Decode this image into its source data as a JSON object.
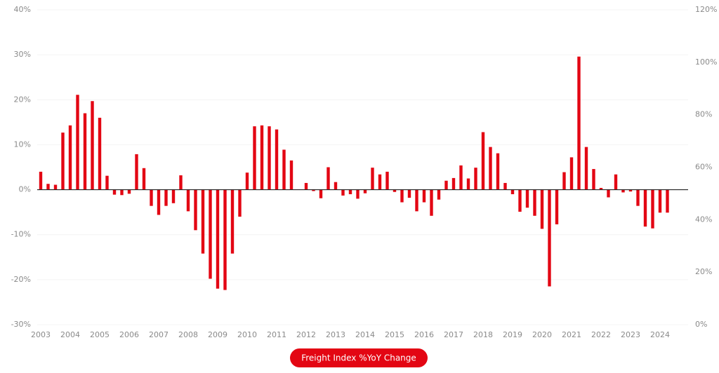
{
  "chart_data": {
    "type": "bar",
    "categories": [
      "2003",
      null,
      null,
      null,
      "2004",
      null,
      null,
      null,
      "2005",
      null,
      null,
      null,
      "2006",
      null,
      null,
      null,
      "2007",
      null,
      null,
      null,
      "2008",
      null,
      null,
      null,
      "2009",
      null,
      null,
      null,
      "2010",
      null,
      null,
      null,
      "2011",
      null,
      null,
      null,
      "2012",
      null,
      null,
      null,
      "2013",
      null,
      null,
      null,
      "2014",
      null,
      null,
      null,
      "2015",
      null,
      null,
      null,
      "2016",
      null,
      null,
      null,
      "2017",
      null,
      null,
      null,
      "2018",
      null,
      null,
      null,
      "2019",
      null,
      null,
      null,
      "2020",
      null,
      null,
      null,
      "2021",
      null,
      null,
      null,
      "2022",
      null,
      null,
      null,
      "2023",
      null,
      null,
      null,
      "2024",
      null
    ],
    "series": [
      {
        "name": "Freight Index %YoY Change",
        "color": "#e30613",
        "values": [
          4,
          1.3,
          1.1,
          12.7,
          14.3,
          21.1,
          17,
          19.7,
          16,
          3.1,
          -1.1,
          -1.2,
          -0.9,
          7.9,
          4.8,
          -3.6,
          -5.6,
          -3.6,
          -3.0,
          3.2,
          -4.8,
          -9,
          -14.2,
          -19.8,
          -22,
          -22.3,
          -14.2,
          -6,
          3.8,
          14.1,
          14.3,
          14.1,
          13.4,
          8.9,
          6.5,
          0,
          1.5,
          -0.3,
          -1.9,
          5.0,
          1.7,
          -1.3,
          -1,
          -2,
          -0.8,
          4.9,
          3.4,
          4.0,
          -0.5,
          -2.8,
          -1.8,
          -4.8,
          -2.8,
          -5.8,
          -2.2,
          2.0,
          2.6,
          5.4,
          2.5,
          4.9,
          12.8,
          9.5,
          8.1,
          1.5,
          -1,
          -4.9,
          -4,
          -5.8,
          -8.7,
          -21.5,
          -7.7,
          3.9,
          7.2,
          29.6,
          9.5,
          4.6,
          0.4,
          -1.7,
          3.4,
          -0.6,
          -0.4,
          -3.6,
          -8.2,
          -8.6,
          -5.1,
          -5.1
        ]
      }
    ],
    "ylim": [
      -30,
      40
    ],
    "yticks": [
      {
        "value": -30,
        "label": "-30%"
      },
      {
        "value": -20,
        "label": "-20%"
      },
      {
        "value": -10,
        "label": "-10%"
      },
      {
        "value": 0,
        "label": "0%"
      },
      {
        "value": 10,
        "label": "10%"
      },
      {
        "value": 20,
        "label": "20%"
      },
      {
        "value": 30,
        "label": "30%"
      },
      {
        "value": 40,
        "label": "40%"
      }
    ],
    "y2lim": [
      0,
      120
    ],
    "y2ticks": [
      {
        "value": 0,
        "label": "0%"
      },
      {
        "value": 20,
        "label": "20%"
      },
      {
        "value": 40,
        "label": "40%"
      },
      {
        "value": 60,
        "label": "60%"
      },
      {
        "value": 80,
        "label": "80%"
      },
      {
        "value": 100,
        "label": "100%"
      },
      {
        "value": 120,
        "label": "120%"
      }
    ],
    "grid": true
  }
}
